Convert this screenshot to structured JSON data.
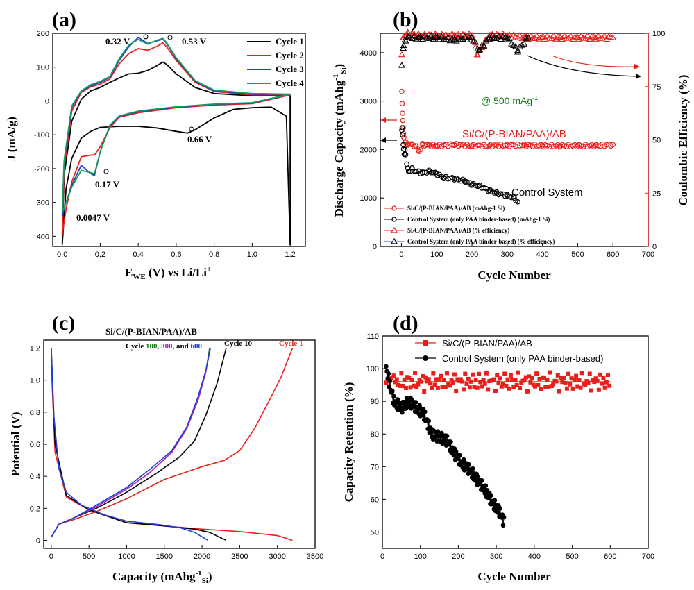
{
  "panels": {
    "a": {
      "label": "(a)",
      "xlabel_main": "E",
      "xlabel_sub": "WE",
      "xlabel_rest": " (V) vs Li/Li",
      "xlabel_sup": "+",
      "ylabel": "J (mA/g)",
      "ann": [
        "0.32 V",
        "0.53 V",
        "0.66 V",
        "0.17 V",
        "0.0047 V"
      ]
    },
    "b": {
      "label": "(b)",
      "xlabel": "Cycle Number",
      "ylabel": "Discharge Capacity (mAhg",
      "ylabel_sup": "-1",
      "ylabel_sub": "Si",
      "ylabel_end": ")",
      "y2label": "Coulombic Efficiency (%)",
      "rate": "@ 500 mAg",
      "rate_sup": "-1",
      "sys_label": "Si/C/(P-BIAN/PAA)/AB",
      "ctrl_label": "Control System"
    },
    "c": {
      "label": "(c)",
      "title": "Si/C/(P-BIAN/PAA)/AB",
      "xlabel": "Capacity (mAhg",
      "xlabel_sup": "-1",
      "xlabel_sub": "Si",
      "xlabel_end": ")",
      "ylabel": "Potential (V)",
      "cyc_prefix": "Cycle ",
      "c100": "100",
      "comma": ", ",
      "c300": "300",
      "and": ", and ",
      "c600": "600",
      "c10": "Cycle 10",
      "c1": "Cycle 1"
    },
    "d": {
      "label": "(d)",
      "xlabel": "Cycle Number",
      "ylabel": "Capacity Retention (%)"
    }
  },
  "colors": {
    "black": "#000000",
    "red": "#e8201c",
    "blue": "#1f3fd6",
    "green": "#1a9a5a",
    "darkgreen": "#1b7a1b",
    "purple": "#b21fc4"
  },
  "chart_data": [
    {
      "id": "a",
      "type": "line",
      "title": "",
      "xlabel": "E_WE (V) vs Li/Li+",
      "ylabel": "J (mA/g)",
      "xlim": [
        -0.05,
        1.28
      ],
      "ylim": [
        -430,
        200
      ],
      "xticks": [
        0.0,
        0.2,
        0.4,
        0.6,
        0.8,
        1.0,
        1.2
      ],
      "yticks": [
        -400,
        -300,
        -200,
        -100,
        0,
        100,
        200
      ],
      "series": [
        {
          "name": "Cycle 1",
          "color": "#000000",
          "x": [
            0.0,
            0.01,
            0.05,
            0.1,
            0.15,
            0.2,
            0.25,
            0.3,
            0.35,
            0.4,
            0.45,
            0.5,
            0.53,
            0.55,
            0.6,
            0.7,
            0.8,
            1.0,
            1.2,
            1.2,
            1.18,
            1.1,
            1.0,
            0.9,
            0.8,
            0.7,
            0.66,
            0.6,
            0.5,
            0.4,
            0.3,
            0.2,
            0.15,
            0.1,
            0.05,
            0.02,
            0.0
          ],
          "y": [
            -425,
            -220,
            -60,
            5,
            30,
            40,
            55,
            68,
            80,
            82,
            90,
            105,
            115,
            108,
            80,
            40,
            22,
            15,
            15,
            -425,
            -45,
            -18,
            -20,
            -25,
            -50,
            -85,
            -95,
            -90,
            -80,
            -75,
            -75,
            -78,
            -90,
            -110,
            -170,
            -260,
            -425
          ]
        },
        {
          "name": "Cycle 2",
          "color": "#e8201c",
          "x": [
            0.0,
            0.01,
            0.05,
            0.1,
            0.15,
            0.2,
            0.25,
            0.3,
            0.35,
            0.4,
            0.45,
            0.5,
            0.53,
            0.55,
            0.6,
            0.7,
            0.8,
            1.0,
            1.2,
            1.0,
            0.8,
            0.6,
            0.4,
            0.3,
            0.25,
            0.2,
            0.17,
            0.15,
            0.1,
            0.05,
            0.02,
            0.0
          ],
          "y": [
            -395,
            -200,
            -30,
            25,
            42,
            50,
            65,
            110,
            140,
            155,
            150,
            162,
            172,
            160,
            120,
            55,
            28,
            18,
            18,
            -8,
            -12,
            -20,
            -35,
            -48,
            -80,
            -135,
            -160,
            -160,
            -165,
            -240,
            -320,
            -395
          ]
        },
        {
          "name": "Cycle 3",
          "color": "#1f3fd6",
          "x": [
            0.0,
            0.01,
            0.05,
            0.1,
            0.15,
            0.2,
            0.25,
            0.3,
            0.35,
            0.4,
            0.45,
            0.5,
            0.53,
            0.55,
            0.6,
            0.7,
            0.8,
            1.0,
            1.2,
            1.0,
            0.8,
            0.6,
            0.4,
            0.3,
            0.25,
            0.2,
            0.17,
            0.15,
            0.1,
            0.05,
            0.02,
            0.0
          ],
          "y": [
            -340,
            -180,
            -20,
            28,
            45,
            55,
            70,
            120,
            160,
            188,
            170,
            178,
            183,
            170,
            125,
            58,
            30,
            20,
            20,
            -6,
            -10,
            -18,
            -32,
            -45,
            -75,
            -150,
            -220,
            -215,
            -190,
            -250,
            -300,
            -340
          ]
        },
        {
          "name": "Cycle 4",
          "color": "#1a9a5a",
          "x": [
            0.0,
            0.01,
            0.05,
            0.1,
            0.15,
            0.2,
            0.25,
            0.3,
            0.35,
            0.4,
            0.45,
            0.5,
            0.53,
            0.55,
            0.6,
            0.7,
            0.8,
            1.0,
            1.2,
            1.0,
            0.8,
            0.6,
            0.4,
            0.3,
            0.25,
            0.2,
            0.17,
            0.15,
            0.1,
            0.05,
            0.02,
            0.0
          ],
          "y": [
            -330,
            -175,
            -15,
            30,
            48,
            58,
            72,
            125,
            165,
            182,
            168,
            180,
            185,
            172,
            128,
            60,
            32,
            22,
            20,
            -5,
            -9,
            -17,
            -30,
            -44,
            -72,
            -150,
            -215,
            -212,
            -205,
            -255,
            -300,
            -330
          ]
        }
      ],
      "legend": [
        "Cycle 1",
        "Cycle 2",
        "Cycle 3",
        "Cycle 4"
      ],
      "legend_position": "top-right",
      "annotations": [
        "0.32 V",
        "0.53 V",
        "0.66 V",
        "0.17 V",
        "0.0047 V"
      ]
    },
    {
      "id": "b",
      "type": "scatter",
      "title": "",
      "xlabel": "Cycle Number",
      "ylabel": "Discharge Capacity (mAhg-1 Si)",
      "y2label": "Coulombic Efficiency (%)",
      "xlim": [
        -60,
        700
      ],
      "ylim": [
        0,
        4400
      ],
      "y2lim": [
        0,
        100
      ],
      "xticks": [
        0,
        100,
        200,
        300,
        400,
        500,
        600,
        700
      ],
      "yticks": [
        0,
        1000,
        2000,
        3000,
        4000
      ],
      "y2ticks": [
        0,
        25,
        50,
        75,
        100
      ],
      "series": [
        {
          "name": "Si/C/(P-BIAN/PAA)/AB (mAhg-1 Si)",
          "axis": "left",
          "color": "#e8201c",
          "marker": "circle",
          "x": [
            1,
            2,
            3,
            4,
            5,
            7,
            10,
            15,
            20,
            30,
            40,
            50,
            60,
            80,
            100,
            150,
            200,
            250,
            300,
            350,
            400,
            450,
            500,
            550,
            600
          ],
          "y": [
            3200,
            2950,
            2750,
            2600,
            2450,
            2250,
            2150,
            2100,
            2120,
            2100,
            2080,
            1960,
            2100,
            2090,
            2080,
            2100,
            2080,
            2080,
            2090,
            2090,
            2080,
            2080,
            2080,
            2080,
            2100
          ]
        },
        {
          "name": "Control System (only PAA binder-based) (mAhg-1 Si)",
          "axis": "left",
          "color": "#000000",
          "marker": "circle",
          "x": [
            1,
            2,
            3,
            5,
            8,
            10,
            15,
            20,
            30,
            40,
            60,
            80,
            100,
            120,
            150,
            180,
            200,
            220,
            250,
            270,
            300,
            320,
            330
          ],
          "y": [
            2400,
            2450,
            2300,
            2100,
            1900,
            2000,
            1700,
            1550,
            1600,
            1550,
            1520,
            1550,
            1500,
            1420,
            1400,
            1350,
            1280,
            1250,
            1150,
            1100,
            1050,
            1000,
            920
          ]
        },
        {
          "name": "Si/C/(P-BIAN/PAA)/AB (% efficiency)",
          "axis": "right",
          "color": "#e8201c",
          "marker": "triangle",
          "x": [
            1,
            5,
            10,
            20,
            50,
            100,
            150,
            200,
            215,
            250,
            300,
            350,
            400,
            450,
            500,
            550,
            600
          ],
          "y": [
            90,
            98,
            99,
            100,
            99,
            99,
            99,
            99,
            90,
            99,
            99,
            98,
            98,
            98,
            98,
            98,
            98
          ]
        },
        {
          "name": "Control System (only PAA binder-based) (% efficiency)",
          "axis": "right",
          "color": "#000000",
          "marker": "triangle",
          "x": [
            1,
            5,
            10,
            20,
            50,
            100,
            150,
            200,
            220,
            250,
            300,
            330,
            360
          ],
          "y": [
            85,
            93,
            97,
            98,
            98,
            98,
            97,
            98,
            92,
            98,
            98,
            92,
            98
          ]
        }
      ],
      "annotations": [
        "@ 500 mAg-1",
        "Si/C/(P-BIAN/PAA)/AB",
        "Control System"
      ],
      "legend_position": "bottom-left"
    },
    {
      "id": "c",
      "type": "line",
      "title": "Si/C/(P-BIAN/PAA)/AB",
      "xlabel": "Capacity (mAhg-1 Si)",
      "ylabel": "Potential (V)",
      "xlim": [
        -100,
        3500
      ],
      "ylim": [
        -0.05,
        1.25
      ],
      "xticks": [
        0,
        500,
        1000,
        1500,
        2000,
        2500,
        3000,
        3500
      ],
      "yticks": [
        0,
        0.2,
        0.4,
        0.6,
        0.8,
        1.0,
        1.2
      ],
      "series": [
        {
          "name": "Cycle 1 discharge",
          "color": "#e8201c",
          "x": [
            0,
            50,
            200,
            500,
            1000,
            1500,
            2000,
            2500,
            3000,
            3200
          ],
          "y": [
            1.1,
            0.55,
            0.27,
            0.19,
            0.11,
            0.09,
            0.07,
            0.055,
            0.03,
            0.0
          ]
        },
        {
          "name": "Cycle 1 charge",
          "color": "#e8201c",
          "x": [
            0,
            100,
            300,
            600,
            1000,
            1500,
            2000,
            2300,
            2500,
            2700,
            2900,
            3050,
            3200
          ],
          "y": [
            0.02,
            0.1,
            0.13,
            0.18,
            0.26,
            0.38,
            0.46,
            0.5,
            0.56,
            0.7,
            0.88,
            1.02,
            1.2
          ]
        },
        {
          "name": "Cycle 10",
          "color": "#000000",
          "x": [
            0,
            100,
            300,
            600,
            1000,
            1400,
            1700,
            1900,
            2050,
            2200,
            2320
          ],
          "y": [
            0.02,
            0.1,
            0.14,
            0.2,
            0.3,
            0.42,
            0.52,
            0.62,
            0.78,
            0.98,
            1.2
          ]
        },
        {
          "name": "Cycle 10 discharge",
          "color": "#000000",
          "x": [
            0,
            50,
            200,
            500,
            1000,
            1500,
            1900,
            2100,
            2320
          ],
          "y": [
            1.2,
            0.6,
            0.28,
            0.19,
            0.11,
            0.09,
            0.07,
            0.05,
            0.0
          ]
        },
        {
          "name": "Cycle 100",
          "color": "#1b7a1b",
          "x": [
            0,
            100,
            300,
            600,
            1000,
            1300,
            1600,
            1800,
            1950,
            2050,
            2100
          ],
          "y": [
            0.02,
            0.1,
            0.14,
            0.21,
            0.32,
            0.42,
            0.55,
            0.7,
            0.88,
            1.05,
            1.2
          ]
        },
        {
          "name": "Cycle 300",
          "color": "#b21fc4",
          "x": [
            0,
            100,
            300,
            600,
            1000,
            1300,
            1600,
            1800,
            1950,
            2050,
            2110
          ],
          "y": [
            0.02,
            0.1,
            0.14,
            0.21,
            0.32,
            0.42,
            0.55,
            0.7,
            0.88,
            1.05,
            1.2
          ]
        },
        {
          "name": "Cycle 600",
          "color": "#1f3fd6",
          "x": [
            0,
            100,
            300,
            600,
            1000,
            1300,
            1600,
            1800,
            1950,
            2050,
            2110
          ],
          "y": [
            0.02,
            0.1,
            0.14,
            0.22,
            0.33,
            0.44,
            0.56,
            0.71,
            0.9,
            1.06,
            1.2
          ]
        },
        {
          "name": "Cycle 100/300/600 discharge",
          "color": "#1f3fd6",
          "x": [
            0,
            30,
            100,
            200,
            400,
            700,
            1000,
            1400,
            1700,
            1900,
            2080
          ],
          "y": [
            1.2,
            0.8,
            0.45,
            0.3,
            0.22,
            0.16,
            0.12,
            0.1,
            0.08,
            0.05,
            0.0
          ]
        }
      ],
      "annotations": [
        "Cycle 100, 300, and 600",
        "Cycle 10",
        "Cycle 1"
      ]
    },
    {
      "id": "d",
      "type": "scatter",
      "title": "",
      "xlabel": "Cycle Number",
      "ylabel": "Capacity Retention (%)",
      "xlim": [
        0,
        700
      ],
      "ylim": [
        45,
        110
      ],
      "xticks": [
        0,
        100,
        200,
        300,
        400,
        500,
        600,
        700
      ],
      "yticks": [
        50,
        60,
        70,
        80,
        90,
        100,
        110
      ],
      "series": [
        {
          "name": "Si/C/(P-BIAN/PAA)/AB",
          "color": "#e8201c",
          "marker": "square",
          "x": [
            10,
            600
          ],
          "y": [
            96,
            96
          ],
          "note": "approximately flat around 94–99%"
        },
        {
          "name": "Control System (only PAA binder-based)",
          "color": "#000000",
          "marker": "circle",
          "x": [
            10,
            30,
            50,
            70,
            90,
            110,
            130,
            150,
            170,
            190,
            210,
            230,
            250,
            270,
            290,
            310,
            320
          ],
          "y": [
            100,
            90,
            88,
            90,
            88,
            86,
            80,
            79,
            78,
            74,
            71,
            69,
            66,
            63,
            59,
            56,
            53
          ]
        }
      ],
      "legend": [
        "Si/C/(P-BIAN/PAA)/AB",
        "Control System (only PAA binder-based)"
      ],
      "legend_position": "top-left"
    }
  ]
}
